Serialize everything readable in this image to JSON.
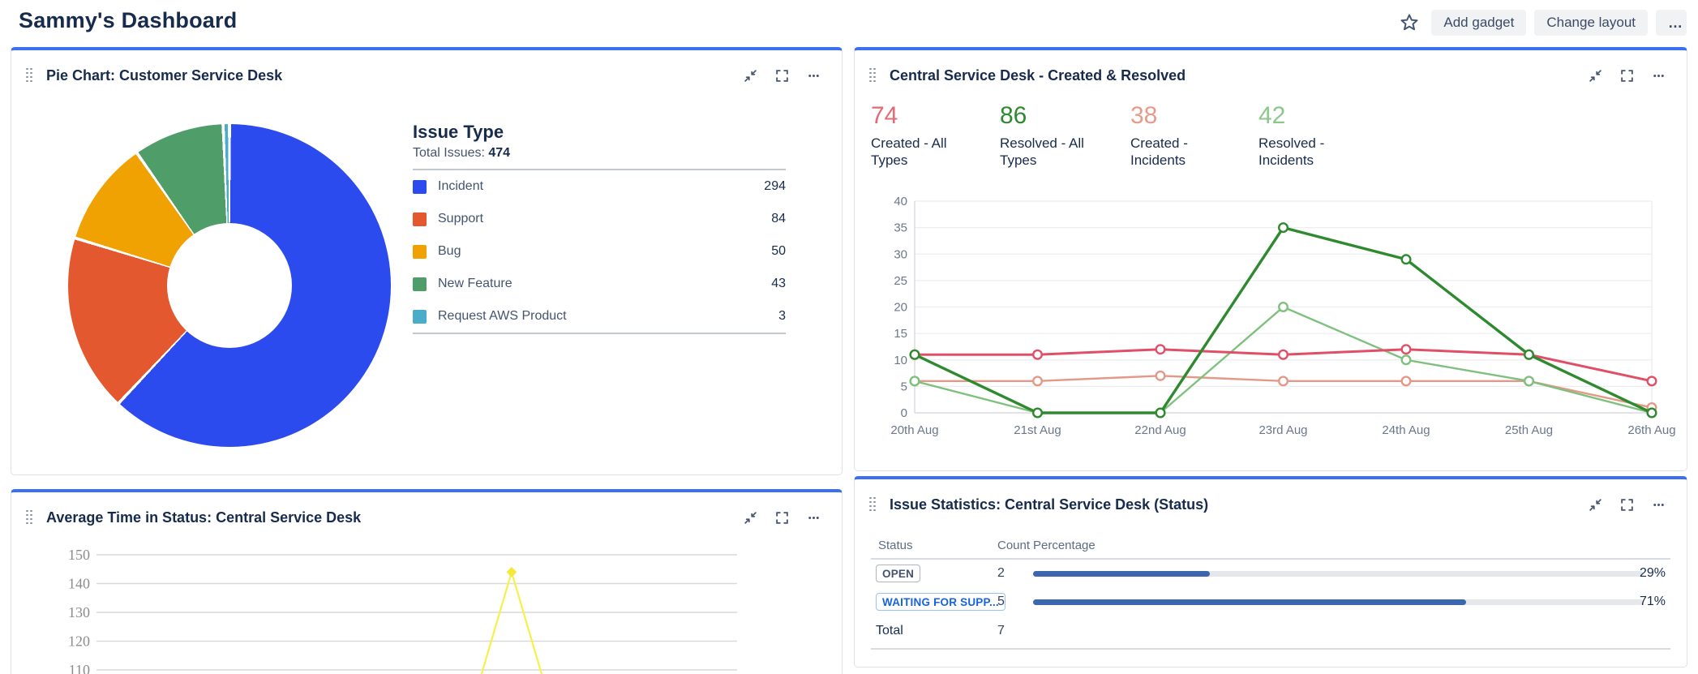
{
  "page": {
    "title": "Sammy's Dashboard"
  },
  "toolbar": {
    "star_icon": "star-outline",
    "add_gadget_label": "Add gadget",
    "change_layout_label": "Change layout",
    "more_label": "…"
  },
  "colors": {
    "card_accent": "#3D6FF2",
    "bar_fill": "#3A67AE",
    "grid_line": "#EDEEF1",
    "axis_line": "#D7DAE0",
    "tick_text": "#6B778C",
    "avg_grid": "#D9D9D9",
    "avg_tick_text": "#8C8C8C"
  },
  "gadgets": {
    "pie": {
      "title": "Pie Chart: Customer Service Desk",
      "legend_title": "Issue Type",
      "total_prefix": "Total Issues: ",
      "total_value": "474"
    },
    "created_resolved": {
      "title": "Central Service Desk - Created & Resolved",
      "stats": [
        {
          "value": "74",
          "label": "Created - All Types",
          "color": "#E26A76"
        },
        {
          "value": "86",
          "label": "Resolved - All Types",
          "color": "#2F8A2F"
        },
        {
          "value": "38",
          "label": "Created - Incidents",
          "color": "#E79C8B"
        },
        {
          "value": "42",
          "label": "Resolved - Incidents",
          "color": "#8BC78B"
        }
      ]
    },
    "avg_time": {
      "title": "Average Time in Status: Central Service Desk"
    },
    "issue_stats": {
      "title": "Issue Statistics: Central Service Desk (Status)",
      "columns": [
        "Status",
        "Count",
        "Percentage"
      ],
      "rows": [
        {
          "status": "OPEN",
          "variant": "neutral",
          "count": "2",
          "pct": 29,
          "pct_label": "29%"
        },
        {
          "status": "WAITING FOR SUPP...",
          "variant": "blue",
          "count": "5",
          "pct": 71,
          "pct_label": "71%"
        }
      ],
      "total_label": "Total",
      "total_value": "7"
    }
  },
  "chart_data": [
    {
      "type": "pie",
      "title": "Issue Type",
      "total": 474,
      "slices": [
        {
          "label": "Incident",
          "value": 294,
          "color": "#2C4BEE"
        },
        {
          "label": "Support",
          "value": 84,
          "color": "#E4582F"
        },
        {
          "label": "Bug",
          "value": 50,
          "color": "#F0A202"
        },
        {
          "label": "New Feature",
          "value": 43,
          "color": "#4F9D69"
        },
        {
          "label": "Request AWS Product",
          "value": 3,
          "color": "#49ADC9"
        }
      ],
      "donut": true,
      "legend_position": "right"
    },
    {
      "type": "line",
      "title": "Central Service Desk - Created & Resolved",
      "categories": [
        "20th Aug",
        "21st Aug",
        "22nd Aug",
        "23rd Aug",
        "24th Aug",
        "25th Aug",
        "26th Aug"
      ],
      "ylim": [
        0,
        40
      ],
      "ytick_step": 5,
      "grid": true,
      "series": [
        {
          "name": "Created - Incidents",
          "color": "#E49887",
          "width": 2.4,
          "values": [
            6,
            6,
            7,
            6,
            6,
            6,
            1
          ]
        },
        {
          "name": "Resolved - Incidents",
          "color": "#7FC07F",
          "width": 2.4,
          "values": [
            6,
            0,
            0,
            20,
            10,
            6,
            0
          ]
        },
        {
          "name": "Created - All Types",
          "color": "#E14F66",
          "width": 3,
          "values": [
            11,
            11,
            12,
            11,
            12,
            11,
            6
          ]
        },
        {
          "name": "Resolved - All Types",
          "color": "#2F8A2F",
          "width": 3.4,
          "values": [
            11,
            0,
            0,
            35,
            29,
            11,
            0
          ]
        }
      ]
    },
    {
      "type": "line",
      "title": "Average Time in Status: Central Service Desk",
      "yticks": [
        150,
        140,
        130,
        120,
        110
      ],
      "grid": true,
      "series": [
        {
          "name": "Time in Status",
          "color": "#F7F04A",
          "marker_color": "#F2E93B",
          "points": [
            {
              "xf": 0.601,
              "value": 108.5
            },
            {
              "xf": 0.648,
              "value": 144
            },
            {
              "xf": 0.695,
              "value": 108.5
            }
          ]
        }
      ],
      "note": "chart partially cut off at bottom of viewport"
    },
    {
      "type": "table",
      "title": "Issue Statistics: Central Service Desk (Status)",
      "columns": [
        "Status",
        "Count",
        "Percentage"
      ],
      "rows": [
        [
          "OPEN",
          2,
          "29%"
        ],
        [
          "WAITING FOR SUPP...",
          5,
          "71%"
        ],
        [
          "Total",
          7,
          ""
        ]
      ]
    }
  ]
}
